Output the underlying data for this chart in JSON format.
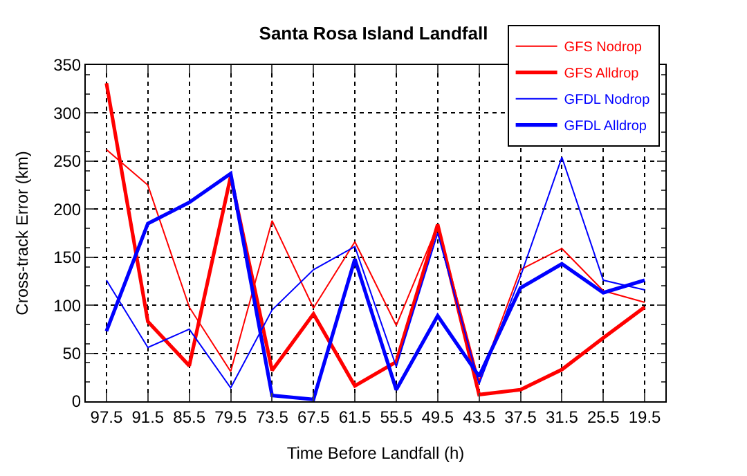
{
  "chart_data": {
    "type": "line",
    "title": "Santa Rosa Island Landfall",
    "xlabel": "Time Before Landfall (h)",
    "ylabel": "Cross-track Error (km)",
    "categories": [
      "97.5",
      "91.5",
      "85.5",
      "79.5",
      "73.5",
      "67.5",
      "61.5",
      "55.5",
      "49.5",
      "43.5",
      "37.5",
      "31.5",
      "25.5",
      "19.5"
    ],
    "series": [
      {
        "name": "GFS Nodrop",
        "color": "#ff0000",
        "values": [
          262,
          225,
          98,
          31,
          188,
          97,
          166,
          79,
          183,
          21,
          137,
          159,
          115,
          103
        ]
      },
      {
        "name": "GFS Alldrop",
        "color": "#ff0000",
        "values": [
          331,
          83,
          37,
          234,
          32,
          91,
          16,
          41,
          184,
          7,
          12,
          33,
          66,
          98
        ]
      },
      {
        "name": "GFDL Nodrop",
        "color": "#0000ff",
        "values": [
          126,
          56,
          75,
          14,
          95,
          137,
          161,
          36,
          175,
          18,
          130,
          254,
          126,
          116
        ]
      },
      {
        "name": "GFDL Alldrop",
        "color": "#0000ff",
        "values": [
          73,
          185,
          207,
          237,
          6,
          2,
          148,
          12,
          89,
          26,
          118,
          143,
          113,
          126
        ]
      }
    ],
    "ylim": [
      0,
      350
    ],
    "yticks": [
      0,
      50,
      100,
      150,
      200,
      250,
      300,
      350
    ],
    "grid": true,
    "legend": "top right",
    "marker": "none",
    "line_style": "solid"
  }
}
